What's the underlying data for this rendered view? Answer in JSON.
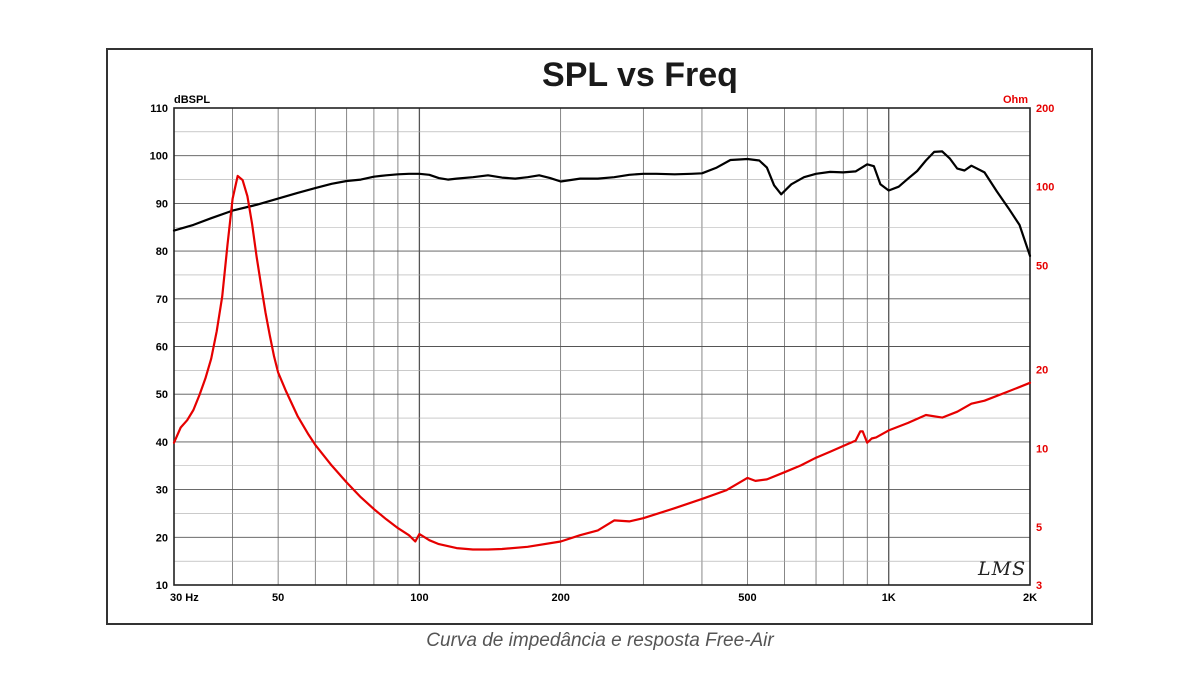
{
  "caption": "Curva de impedância e resposta Free-Air",
  "logo_text": "LMS",
  "colors": {
    "spl": "#000000",
    "impedance": "#e60000",
    "grid": "#555555",
    "frame": "#333333"
  },
  "chart_data": {
    "type": "line",
    "title": "SPL vs Freq",
    "x_scale": "log",
    "xlim": [
      30,
      2000
    ],
    "x_ticks": [
      {
        "value": 30,
        "label": "30  Hz"
      },
      {
        "value": 50,
        "label": "50"
      },
      {
        "value": 100,
        "label": "100"
      },
      {
        "value": 200,
        "label": "200"
      },
      {
        "value": 500,
        "label": "500"
      },
      {
        "value": 1000,
        "label": "1K"
      },
      {
        "value": 2000,
        "label": "2K"
      }
    ],
    "y_left": {
      "label": "dBSPL",
      "ylim": [
        10,
        110
      ],
      "ticks": [
        10,
        20,
        30,
        40,
        50,
        60,
        70,
        80,
        90,
        100,
        110
      ]
    },
    "y_right": {
      "label": "Ohm",
      "scale": "log",
      "ylim": [
        3,
        200
      ],
      "ticks": [
        3,
        5,
        10,
        20,
        50,
        100,
        200
      ]
    },
    "grid": true,
    "series": [
      {
        "axis": "left",
        "color": "#000000",
        "x": [
          30,
          33,
          36,
          40,
          45,
          50,
          55,
          60,
          65,
          70,
          75,
          80,
          85,
          90,
          95,
          100,
          105,
          110,
          115,
          120,
          130,
          140,
          150,
          160,
          170,
          180,
          190,
          200,
          220,
          240,
          260,
          280,
          300,
          320,
          350,
          380,
          400,
          430,
          460,
          480,
          500,
          530,
          550,
          570,
          590,
          620,
          660,
          700,
          750,
          800,
          850,
          870,
          900,
          930,
          960,
          1000,
          1050,
          1100,
          1150,
          1200,
          1250,
          1300,
          1350,
          1400,
          1450,
          1500,
          1600,
          1700,
          1800,
          1900,
          2000
        ],
        "values": [
          84.3,
          85.5,
          86.9,
          88.5,
          89.7,
          91.0,
          92.2,
          93.2,
          94.1,
          94.7,
          95.0,
          95.6,
          95.9,
          96.1,
          96.2,
          96.2,
          96.0,
          95.3,
          95.0,
          95.2,
          95.5,
          95.9,
          95.4,
          95.2,
          95.5,
          95.9,
          95.3,
          94.6,
          95.2,
          95.2,
          95.5,
          96.0,
          96.2,
          96.2,
          96.1,
          96.2,
          96.3,
          97.5,
          99.1,
          99.2,
          99.3,
          99.0,
          97.5,
          93.8,
          91.9,
          94.0,
          95.5,
          96.2,
          96.6,
          96.5,
          96.7,
          97.3,
          98.2,
          97.8,
          94.0,
          92.7,
          93.5,
          95.2,
          96.8,
          99.0,
          100.8,
          100.9,
          99.4,
          97.3,
          96.9,
          97.9,
          96.5,
          92.5,
          89.0,
          85.5,
          79.0
        ]
      },
      {
        "axis": "right",
        "color": "#e60000",
        "x": [
          30,
          31,
          32,
          33,
          34,
          35,
          36,
          37,
          38,
          39,
          40,
          41,
          42,
          43,
          44,
          45,
          46,
          47,
          48,
          49,
          50,
          52,
          55,
          58,
          60,
          65,
          70,
          75,
          80,
          85,
          90,
          95,
          98,
          100,
          105,
          110,
          120,
          130,
          140,
          150,
          170,
          200,
          220,
          240,
          260,
          280,
          300,
          350,
          400,
          450,
          500,
          520,
          550,
          600,
          650,
          700,
          750,
          800,
          850,
          870,
          880,
          900,
          920,
          940,
          1000,
          1100,
          1200,
          1300,
          1400,
          1500,
          1600,
          1800,
          2000
        ],
        "values": [
          10.5,
          12.0,
          12.8,
          14.0,
          16.0,
          18.5,
          22.0,
          28.0,
          38.0,
          60.0,
          90.0,
          110.0,
          106.0,
          92.0,
          72.0,
          54.0,
          42.0,
          33.0,
          27.0,
          22.5,
          19.5,
          16.5,
          13.3,
          11.3,
          10.3,
          8.6,
          7.4,
          6.5,
          5.85,
          5.35,
          4.95,
          4.65,
          4.4,
          4.7,
          4.45,
          4.3,
          4.15,
          4.1,
          4.1,
          4.12,
          4.2,
          4.4,
          4.65,
          4.85,
          5.3,
          5.25,
          5.4,
          5.9,
          6.4,
          6.9,
          7.7,
          7.5,
          7.6,
          8.1,
          8.6,
          9.2,
          9.7,
          10.2,
          10.7,
          11.6,
          11.6,
          10.5,
          10.9,
          11.0,
          11.7,
          12.5,
          13.4,
          13.1,
          13.8,
          14.8,
          15.2,
          16.5,
          17.8
        ]
      }
    ]
  }
}
